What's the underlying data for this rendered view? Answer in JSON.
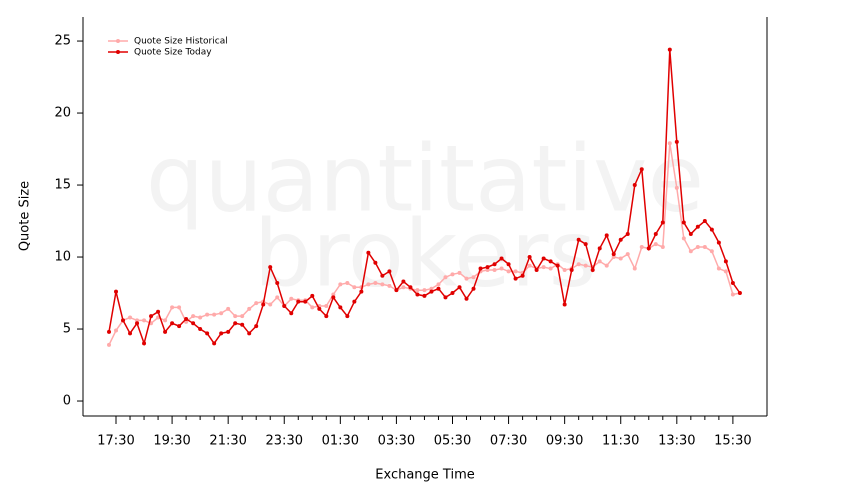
{
  "chart_data": {
    "type": "line",
    "watermark": [
      "quantitative",
      "brokers"
    ],
    "x_label": "Exchange Time",
    "y_label": "Quote Size",
    "categories": [
      null,
      "17:30",
      null,
      null,
      null,
      null,
      null,
      null,
      null,
      "19:30",
      null,
      null,
      null,
      null,
      null,
      null,
      null,
      "21:30",
      null,
      null,
      null,
      null,
      null,
      null,
      null,
      "23:30",
      null,
      null,
      null,
      null,
      null,
      null,
      null,
      "01:30",
      null,
      null,
      null,
      null,
      null,
      null,
      null,
      "03:30",
      null,
      null,
      null,
      null,
      null,
      null,
      null,
      "05:30",
      null,
      null,
      null,
      null,
      null,
      null,
      null,
      "07:30",
      null,
      null,
      null,
      null,
      null,
      null,
      null,
      "09:30",
      null,
      null,
      null,
      null,
      null,
      null,
      null,
      "11:30",
      null,
      null,
      null,
      null,
      null,
      null,
      null,
      "13:30",
      null,
      null,
      null,
      null,
      null,
      null,
      null,
      "15:30",
      null
    ],
    "series": [
      {
        "name": "Quote Size Historical",
        "color": "#ffaaaa",
        "values": [
          3.9,
          4.9,
          5.6,
          5.8,
          5.6,
          5.6,
          5.4,
          5.8,
          5.6,
          6.5,
          6.5,
          5.5,
          5.9,
          5.8,
          6.0,
          6.0,
          6.1,
          6.4,
          5.9,
          5.9,
          6.4,
          6.8,
          6.9,
          6.7,
          7.2,
          6.6,
          7.1,
          7.0,
          7.0,
          6.5,
          6.6,
          6.6,
          7.4,
          8.1,
          8.2,
          7.9,
          7.9,
          8.1,
          8.2,
          8.1,
          8.0,
          7.7,
          7.9,
          7.8,
          7.7,
          7.7,
          7.8,
          8.1,
          8.6,
          8.8,
          8.9,
          8.5,
          8.6,
          9.0,
          9.1,
          9.1,
          9.2,
          9.0,
          9.0,
          8.9,
          9.4,
          9.2,
          9.3,
          9.2,
          9.5,
          9.1,
          9.2,
          9.5,
          9.4,
          9.3,
          9.7,
          9.4,
          10.0,
          9.9,
          10.2,
          9.2,
          10.7,
          10.6,
          10.9,
          10.7,
          17.9,
          14.8,
          11.3,
          10.4,
          10.7,
          10.7,
          10.4,
          9.2,
          9.0,
          7.4,
          7.5
        ]
      },
      {
        "name": "Quote Size Today",
        "color": "#e00000",
        "values": [
          4.8,
          7.6,
          5.6,
          4.7,
          5.4,
          4.0,
          5.9,
          6.2,
          4.8,
          5.4,
          5.2,
          5.7,
          5.4,
          5.0,
          4.7,
          4.0,
          4.7,
          4.8,
          5.4,
          5.3,
          4.7,
          5.2,
          6.7,
          9.3,
          8.2,
          6.6,
          6.1,
          6.9,
          6.9,
          7.3,
          6.4,
          5.9,
          7.2,
          6.5,
          5.9,
          6.9,
          7.6,
          10.3,
          9.6,
          8.7,
          9.0,
          7.7,
          8.3,
          7.9,
          7.4,
          7.3,
          7.6,
          7.8,
          7.2,
          7.5,
          7.9,
          7.1,
          7.8,
          9.2,
          9.3,
          9.5,
          9.9,
          9.5,
          8.5,
          8.7,
          10.0,
          9.1,
          9.9,
          9.7,
          9.4,
          6.7,
          9.1,
          11.2,
          10.9,
          9.1,
          10.6,
          11.5,
          10.2,
          11.2,
          11.6,
          15.0,
          16.1,
          10.6,
          11.6,
          12.4,
          24.4,
          18.0,
          12.4,
          11.6,
          12.1,
          12.5,
          11.9,
          11.0,
          9.7,
          8.2,
          7.5
        ]
      }
    ],
    "ylim": [
      -1.04,
      26.67
    ],
    "yticks": [
      0,
      5,
      10,
      15,
      20,
      25
    ],
    "grid": false,
    "legend": "top-left"
  }
}
